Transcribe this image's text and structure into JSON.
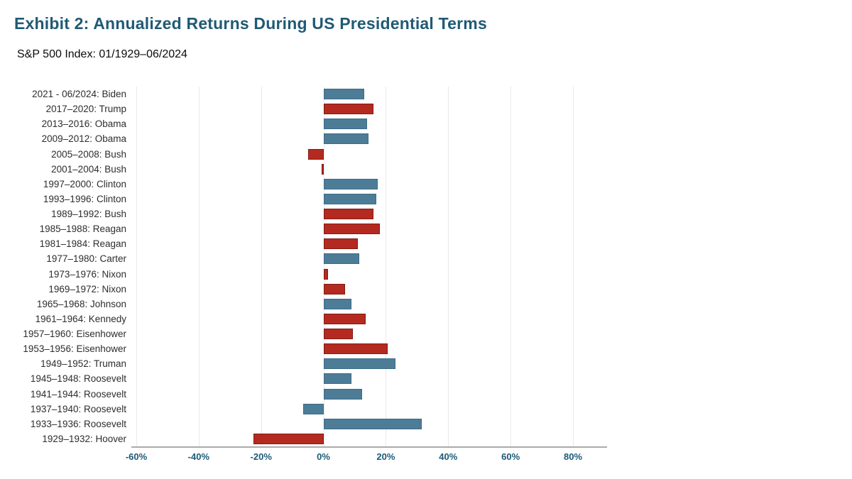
{
  "header": {
    "title": "Exhibit 2: Annualized Returns During US Presidential Terms",
    "subtitle": "S&P 500 Index: 01/1929–06/2024"
  },
  "chart_data": {
    "type": "bar",
    "orientation": "horizontal",
    "title": "Exhibit 2: Annualized Returns During US Presidential Terms",
    "subtitle": "S&P 500 Index: 01/1929–06/2024",
    "xlim": [
      -60,
      80
    ],
    "x_tick_values": [
      -60,
      -40,
      -20,
      0,
      20,
      40,
      60,
      80
    ],
    "x_tick_labels": [
      "-60%",
      "-40%",
      "-20%",
      "0%",
      "20%",
      "40%",
      "60%",
      "80%"
    ],
    "grid": "vertical-light-gray",
    "legend": "none",
    "unit": "percent-annualized-return",
    "colors": {
      "blue": {
        "fill": "#4D7C97",
        "stroke": "#3C6B89"
      },
      "red": {
        "fill": "#B42A20",
        "stroke": "#801C13"
      }
    },
    "bars": [
      {
        "label": "2021 - 06/2024: Biden",
        "value": 13,
        "color": "blue"
      },
      {
        "label": "2017–2020: Trump",
        "value": 16,
        "color": "red"
      },
      {
        "label": "2013–2016: Obama",
        "value": 14,
        "color": "blue"
      },
      {
        "label": "2009–2012: Obama",
        "value": 14.5,
        "color": "blue"
      },
      {
        "label": "2005–2008: Bush",
        "value": -5,
        "color": "red"
      },
      {
        "label": "2001–2004: Bush",
        "value": -0.5,
        "color": "red"
      },
      {
        "label": "1997–2000: Clinton",
        "value": 17.5,
        "color": "blue"
      },
      {
        "label": "1993–1996: Clinton",
        "value": 17,
        "color": "blue"
      },
      {
        "label": "1989–1992: Bush",
        "value": 16,
        "color": "red"
      },
      {
        "label": "1985–1988: Reagan",
        "value": 18,
        "color": "red"
      },
      {
        "label": "1981–1984: Reagan",
        "value": 11,
        "color": "red"
      },
      {
        "label": "1977–1980: Carter",
        "value": 11.5,
        "color": "blue"
      },
      {
        "label": "1973–1976: Nixon",
        "value": 1.5,
        "color": "red"
      },
      {
        "label": "1969–1972: Nixon",
        "value": 7,
        "color": "red"
      },
      {
        "label": "1965–1968: Johnson",
        "value": 9,
        "color": "blue"
      },
      {
        "label": "1961–1964: Kennedy",
        "value": 13.5,
        "color": "red"
      },
      {
        "label": "1957–1960: Eisenhower",
        "value": 9.5,
        "color": "red"
      },
      {
        "label": "1953–1956: Eisenhower",
        "value": 20.5,
        "color": "red"
      },
      {
        "label": "1949–1952: Truman",
        "value": 23,
        "color": "blue"
      },
      {
        "label": "1945–1948: Roosevelt",
        "value": 9,
        "color": "blue"
      },
      {
        "label": "1941–1944: Roosevelt",
        "value": 12.5,
        "color": "blue"
      },
      {
        "label": "1937–1940: Roosevelt",
        "value": -6.5,
        "color": "blue"
      },
      {
        "label": "1933–1936: Roosevelt",
        "value": 31.5,
        "color": "blue"
      },
      {
        "label": "1929–1932: Hoover",
        "value": -22.5,
        "color": "red"
      }
    ]
  }
}
